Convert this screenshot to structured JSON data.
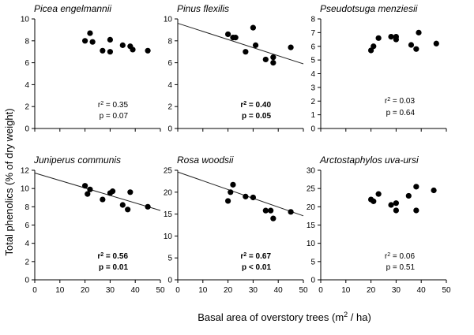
{
  "figure": {
    "ylabel_prefix": "Total  phenolics (% of dry weight)",
    "xlabel_prefix": "Basal area of overstory trees (m",
    "xlabel_sup": "2",
    "xlabel_suffix": " / ha)"
  },
  "chart_data": [
    {
      "type": "scatter",
      "title": "Picea engelmannii",
      "ylim": [
        0,
        10
      ],
      "yticks": [
        0,
        2,
        4,
        6,
        8,
        10
      ],
      "xlim": [
        0,
        50
      ],
      "xticks": [],
      "x": [
        20,
        22,
        23,
        27,
        30,
        30,
        35,
        38,
        39,
        45
      ],
      "y": [
        8.0,
        8.7,
        7.9,
        7.1,
        8.1,
        7.0,
        7.6,
        7.5,
        7.2,
        7.1
      ],
      "trendline": null,
      "r2_label": "r",
      "r2_value": " = 0.35",
      "p_label": "p = 0.07",
      "significant": false
    },
    {
      "type": "scatter",
      "title": "Pinus flexilis",
      "ylim": [
        0,
        10
      ],
      "yticks": [
        0,
        2,
        4,
        6,
        8,
        10
      ],
      "xlim": [
        0,
        50
      ],
      "xticks": [],
      "x": [
        20,
        22,
        23,
        27,
        30,
        31,
        35,
        38,
        38,
        45
      ],
      "y": [
        8.6,
        8.3,
        8.3,
        7.0,
        9.2,
        7.6,
        6.3,
        6.5,
        6.0,
        7.4
      ],
      "trendline": {
        "x": [
          0,
          50
        ],
        "y": [
          9.6,
          5.9
        ]
      },
      "r2_label": "r",
      "r2_value": " = 0.40",
      "p_label": "p = 0.05",
      "significant": true
    },
    {
      "type": "scatter",
      "title": "Pseudotsuga menziesii",
      "ylim": [
        0,
        8
      ],
      "yticks": [
        0,
        1,
        2,
        3,
        4,
        5,
        6,
        7,
        8
      ],
      "xlim": [
        0,
        50
      ],
      "xticks": [],
      "x": [
        20,
        21,
        23,
        28,
        30,
        30,
        36,
        38,
        39,
        46
      ],
      "y": [
        5.7,
        6.0,
        6.6,
        6.7,
        6.5,
        6.7,
        6.1,
        5.8,
        7.0,
        6.2
      ],
      "trendline": null,
      "r2_label": "r",
      "r2_value": " = 0.03",
      "p_label": "p = 0.64",
      "significant": false
    },
    {
      "type": "scatter",
      "title": "Juniperus communis",
      "ylim": [
        0,
        12
      ],
      "yticks": [
        0,
        2,
        4,
        6,
        8,
        10,
        12
      ],
      "xlim": [
        0,
        50
      ],
      "xticks": [
        0,
        10,
        20,
        30,
        40,
        50
      ],
      "x": [
        20,
        21,
        22,
        27,
        30,
        31,
        35,
        37,
        38,
        45
      ],
      "y": [
        10.3,
        9.4,
        9.9,
        8.8,
        9.5,
        9.7,
        8.2,
        7.7,
        9.6,
        8.0
      ],
      "trendline": {
        "x": [
          0,
          50
        ],
        "y": [
          11.7,
          7.6
        ]
      },
      "r2_label": "r",
      "r2_value": " = 0.56",
      "p_label": "p = 0.01",
      "significant": true
    },
    {
      "type": "scatter",
      "title": "Rosa woodsii",
      "ylim": [
        0,
        25
      ],
      "yticks": [
        0,
        5,
        10,
        15,
        20,
        25
      ],
      "xlim": [
        0,
        50
      ],
      "xticks": [
        0,
        10,
        20,
        30,
        40,
        50
      ],
      "x": [
        20,
        21,
        22,
        27,
        30,
        35,
        37,
        38,
        45
      ],
      "y": [
        18.0,
        20.0,
        21.7,
        19.0,
        18.8,
        15.8,
        15.8,
        14.0,
        15.5
      ],
      "trendline": {
        "x": [
          0,
          50
        ],
        "y": [
          24.6,
          14.6
        ]
      },
      "r2_label": "r",
      "r2_value": " = 0.67",
      "p_label": "p < 0.01",
      "significant": true
    },
    {
      "type": "scatter",
      "title": "Arctostaphylos uva-ursi",
      "ylim": [
        0,
        30
      ],
      "yticks": [
        0,
        5,
        10,
        15,
        20,
        25,
        30
      ],
      "xlim": [
        0,
        50
      ],
      "xticks": [
        0,
        10,
        20,
        30,
        40,
        50
      ],
      "x": [
        20,
        21,
        23,
        28,
        30,
        30,
        35,
        38,
        38,
        45
      ],
      "y": [
        22.0,
        21.5,
        23.5,
        20.5,
        21.0,
        19.0,
        23.0,
        19.0,
        25.5,
        24.5
      ],
      "trendline": null,
      "r2_label": "r",
      "r2_value": " = 0.06",
      "p_label": "p = 0.51",
      "significant": false
    }
  ]
}
